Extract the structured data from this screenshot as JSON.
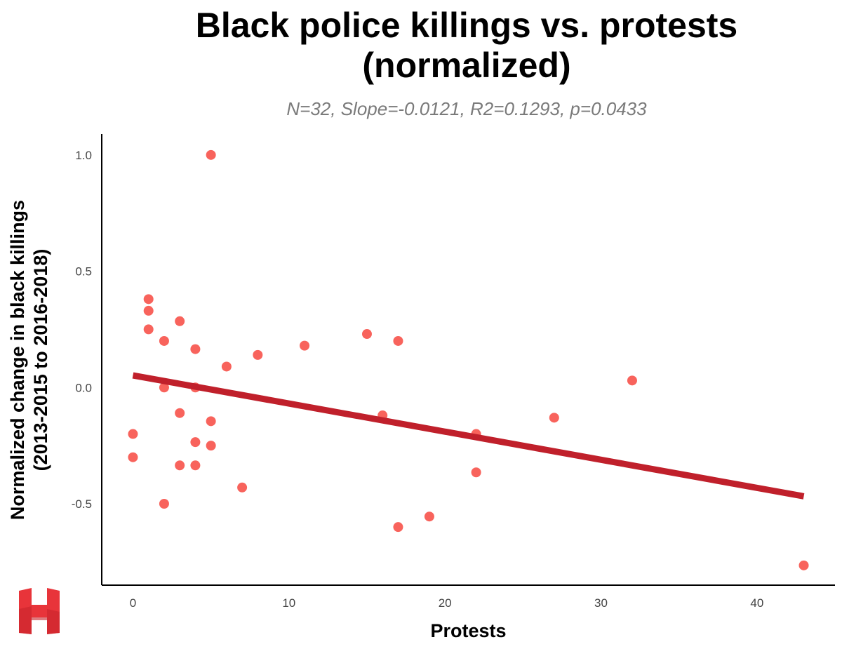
{
  "chart_data": {
    "type": "scatter",
    "title_lines": [
      "Black police killings vs. protests",
      "(normalized)"
    ],
    "subtitle": "N=32, Slope=-0.0121, R2=0.1293, p=0.0433",
    "xlabel": "Protests",
    "ylabel_lines": [
      "Normalized change in black killings",
      "(2013-2015 to 2016-2018)"
    ],
    "xlim": [
      -2,
      45
    ],
    "ylim": [
      -0.85,
      1.09
    ],
    "xticks": [
      0,
      10,
      20,
      30,
      40
    ],
    "xtick_labels": [
      "0",
      "10",
      "20",
      "30",
      "40"
    ],
    "yticks": [
      -0.5,
      0.0,
      0.5,
      1.0
    ],
    "ytick_labels": [
      "-0.5",
      "0.0",
      "0.5",
      "1.0"
    ],
    "grid": false,
    "point_color": "#f8635c",
    "line_color": "#c0202b",
    "points": [
      {
        "x": 0,
        "y": -0.2
      },
      {
        "x": 0,
        "y": -0.3
      },
      {
        "x": 1,
        "y": 0.38
      },
      {
        "x": 1,
        "y": 0.33
      },
      {
        "x": 1,
        "y": 0.25
      },
      {
        "x": 2,
        "y": 0.2
      },
      {
        "x": 2,
        "y": 0.0
      },
      {
        "x": 2,
        "y": -0.5
      },
      {
        "x": 3,
        "y": 0.285
      },
      {
        "x": 3,
        "y": -0.11
      },
      {
        "x": 3,
        "y": -0.335
      },
      {
        "x": 4,
        "y": 0.165
      },
      {
        "x": 4,
        "y": 0.0
      },
      {
        "x": 4,
        "y": -0.235
      },
      {
        "x": 4,
        "y": -0.335
      },
      {
        "x": 5,
        "y": 1.0
      },
      {
        "x": 5,
        "y": -0.145
      },
      {
        "x": 5,
        "y": -0.25
      },
      {
        "x": 6,
        "y": 0.09
      },
      {
        "x": 7,
        "y": -0.43
      },
      {
        "x": 8,
        "y": 0.14
      },
      {
        "x": 11,
        "y": 0.18
      },
      {
        "x": 15,
        "y": 0.23
      },
      {
        "x": 16,
        "y": -0.12
      },
      {
        "x": 17,
        "y": 0.2
      },
      {
        "x": 17,
        "y": -0.6
      },
      {
        "x": 19,
        "y": -0.555
      },
      {
        "x": 22,
        "y": -0.2
      },
      {
        "x": 22,
        "y": -0.365
      },
      {
        "x": 27,
        "y": -0.13
      },
      {
        "x": 32,
        "y": 0.03
      },
      {
        "x": 43,
        "y": -0.765
      }
    ],
    "fit_line": {
      "x": [
        0,
        43
      ],
      "y": [
        0.052,
        -0.468
      ]
    }
  }
}
